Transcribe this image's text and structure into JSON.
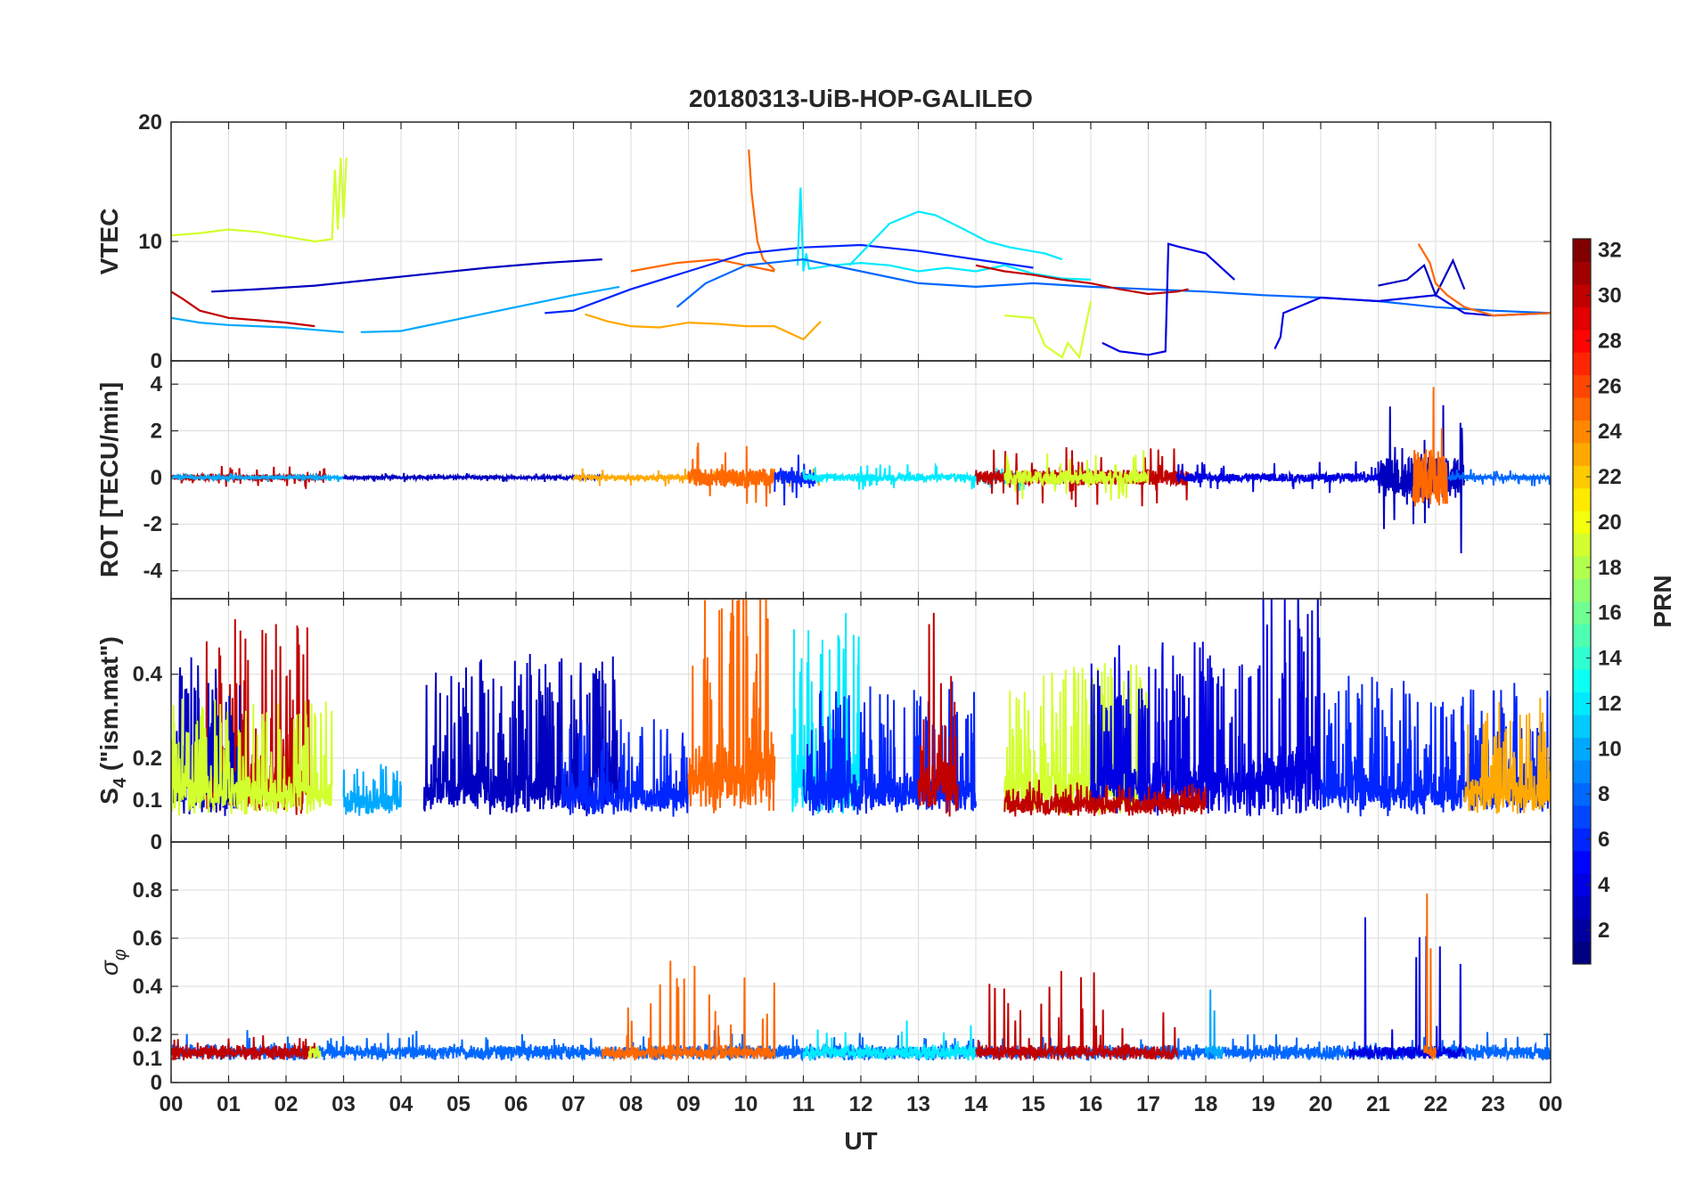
{
  "chart_data": {
    "type": "line",
    "title": "20180313-UiB-HOP-GALILEO",
    "xlabel": "UT",
    "x_ticks": [
      "00",
      "01",
      "02",
      "03",
      "04",
      "05",
      "06",
      "07",
      "08",
      "09",
      "10",
      "11",
      "12",
      "13",
      "14",
      "15",
      "16",
      "17",
      "18",
      "19",
      "20",
      "21",
      "22",
      "23",
      "00"
    ],
    "xlim": [
      0,
      24
    ],
    "colorbar": {
      "label": "PRN",
      "range": [
        1,
        32
      ],
      "ticks": [
        "2",
        "4",
        "6",
        "8",
        "10",
        "12",
        "14",
        "16",
        "18",
        "20",
        "22",
        "24",
        "26",
        "28",
        "30",
        "32"
      ],
      "colormap": "jet"
    },
    "panels": [
      {
        "id": "vtec",
        "ylabel": "VTEC",
        "ylim": [
          0,
          20
        ],
        "y_ticks": [
          "0",
          "10",
          "20"
        ],
        "series": [
          {
            "prn": 19,
            "x": [
              0,
              0.5,
              1,
              1.5,
              2,
              2.5,
              2.8,
              2.85,
              2.9,
              2.95,
              3.0,
              3.05
            ],
            "y": [
              10.5,
              10.7,
              11,
              10.8,
              10.4,
              10.0,
              10.2,
              16,
              11,
              17,
              12,
              17
            ]
          },
          {
            "prn": 30,
            "x": [
              0,
              0.2,
              0.5,
              1,
              1.5,
              2,
              2.5
            ],
            "y": [
              5.8,
              5.2,
              4.2,
              3.6,
              3.4,
              3.2,
              2.9
            ]
          },
          {
            "prn": 10,
            "x": [
              0,
              0.5,
              1,
              1.5,
              2,
              2.5,
              3
            ],
            "y": [
              3.6,
              3.2,
              3.0,
              2.9,
              2.8,
              2.6,
              2.4
            ]
          },
          {
            "prn": 3,
            "x": [
              0.7,
              1.5,
              2.5,
              3.5,
              4.5,
              5.5,
              6.5,
              7.5
            ],
            "y": [
              5.8,
              6.0,
              6.3,
              6.8,
              7.3,
              7.8,
              8.2,
              8.5
            ]
          },
          {
            "prn": 10,
            "x": [
              3.3,
              4,
              5,
              6,
              7,
              7.8
            ],
            "y": [
              2.4,
              2.5,
              3.5,
              4.5,
              5.5,
              6.2
            ]
          },
          {
            "prn": 23,
            "x": [
              7.2,
              7.6,
              8,
              8.5,
              9,
              9.5,
              10,
              10.5,
              11,
              11.3
            ],
            "y": [
              3.9,
              3.3,
              2.9,
              2.8,
              3.2,
              3.1,
              2.9,
              2.9,
              1.8,
              3.3
            ]
          },
          {
            "prn": 25,
            "x": [
              8,
              8.8,
              9.5,
              10,
              10.5
            ],
            "y": [
              7.5,
              8.2,
              8.5,
              8.0,
              7.5
            ]
          },
          {
            "prn": 25,
            "x": [
              10.05,
              10.1,
              10.2,
              10.3,
              10.5
            ],
            "y": [
              17.7,
              14,
              10,
              8.5,
              7.6
            ]
          },
          {
            "prn": 6,
            "x": [
              6.5,
              7,
              8,
              9,
              10,
              11,
              12,
              13,
              14,
              15
            ],
            "y": [
              4.0,
              4.2,
              6,
              7.5,
              9.0,
              9.5,
              9.7,
              9.2,
              8.5,
              7.8
            ]
          },
          {
            "prn": 12,
            "x": [
              10.9,
              10.95,
              11,
              11.05,
              11.1,
              11.5,
              12,
              12.5,
              13,
              13.5,
              14,
              14.5,
              15,
              15.5,
              16
            ],
            "y": [
              8,
              14.5,
              7.5,
              9,
              7.7,
              8,
              8.2,
              8,
              7.5,
              7.8,
              7.5,
              8,
              7.3,
              6.9,
              6.8
            ]
          },
          {
            "prn": 12,
            "x": [
              11.8,
              12.2,
              12.5,
              13,
              13.3,
              13.8,
              14.2,
              14.6,
              15.2,
              15.5
            ],
            "y": [
              8,
              10,
              11.5,
              12.5,
              12.2,
              11,
              10,
              9.5,
              9.0,
              8.5
            ]
          },
          {
            "prn": 8,
            "x": [
              8.8,
              9.3,
              10,
              11,
              12,
              13,
              14,
              15,
              16,
              17,
              18,
              19,
              20,
              21,
              22,
              23,
              24
            ],
            "y": [
              4.5,
              6.5,
              8.0,
              8.5,
              7.5,
              6.5,
              6.2,
              6.5,
              6.2,
              6.0,
              5.8,
              5.5,
              5.3,
              5.0,
              4.5,
              4.2,
              4.0
            ]
          },
          {
            "prn": 30,
            "x": [
              14,
              14.5,
              15,
              15.5,
              16,
              16.5,
              17,
              17.5,
              17.7
            ],
            "y": [
              8,
              7.5,
              7.2,
              6.8,
              6.5,
              6.0,
              5.6,
              5.8,
              6.0
            ]
          },
          {
            "prn": 19,
            "x": [
              14.5,
              15,
              15.2,
              15.5,
              15.6,
              15.8,
              16
            ],
            "y": [
              3.8,
              3.6,
              1.3,
              0.3,
              1.5,
              0.3,
              5.0
            ]
          },
          {
            "prn": 4,
            "x": [
              16.2,
              16.5,
              17,
              17.3,
              17.35,
              17.5,
              18,
              18.5
            ],
            "y": [
              1.5,
              0.8,
              0.5,
              0.8,
              9.8,
              9.6,
              9.0,
              6.8
            ]
          },
          {
            "prn": 4,
            "x": [
              19.2,
              19.3,
              19.35,
              20,
              21,
              22,
              22.5,
              23,
              24
            ],
            "y": [
              1.0,
              2.0,
              4.0,
              5.3,
              5.0,
              5.5,
              4.0,
              3.8,
              4.0
            ]
          },
          {
            "prn": 3,
            "x": [
              21,
              21.5,
              21.8,
              22,
              22.3,
              22.5
            ],
            "y": [
              6.3,
              6.8,
              8.0,
              5.5,
              8.4,
              6.0
            ]
          },
          {
            "prn": 25,
            "x": [
              21.7,
              21.9,
              22,
              22.2,
              22.5,
              23,
              24
            ],
            "y": [
              9.8,
              8.2,
              6.5,
              5.5,
              4.5,
              3.8,
              4.0
            ]
          }
        ]
      },
      {
        "id": "rot",
        "ylabel": "ROT [TECU/min]",
        "ylim": [
          -5.2,
          5
        ],
        "y_ticks": [
          "-4",
          "-2",
          "0",
          "2",
          "4"
        ],
        "noise_segments": [
          {
            "prn": 30,
            "start": 0,
            "end": 2.7,
            "amp": 0.5
          },
          {
            "prn": 10,
            "start": 0,
            "end": 3.0,
            "amp": 0.2
          },
          {
            "prn": 3,
            "start": 3.0,
            "end": 7.5,
            "amp": 0.2
          },
          {
            "prn": 23,
            "start": 7.0,
            "end": 11.3,
            "amp": 0.4
          },
          {
            "prn": 25,
            "start": 9.0,
            "end": 10.5,
            "amp": 1.5
          },
          {
            "prn": 6,
            "start": 10.5,
            "end": 11.2,
            "amp": 1.2
          },
          {
            "prn": 12,
            "start": 11.0,
            "end": 16.0,
            "amp": 0.6
          },
          {
            "prn": 30,
            "start": 14.0,
            "end": 17.7,
            "amp": 1.3
          },
          {
            "prn": 19,
            "start": 14.5,
            "end": 17.0,
            "amp": 1.2
          },
          {
            "prn": 4,
            "start": 17.5,
            "end": 21.0,
            "amp": 0.7
          },
          {
            "prn": 3,
            "start": 21.0,
            "end": 22.5,
            "amp": 3.5
          },
          {
            "prn": 25,
            "start": 21.6,
            "end": 22.2,
            "amp": 5.0
          },
          {
            "prn": 8,
            "start": 22.2,
            "end": 24.0,
            "amp": 0.4
          }
        ]
      },
      {
        "id": "s4",
        "ylabel": "S",
        "ylabel_sub": "4",
        "ylabel_suffix": " (\"ism.mat\")",
        "ylim": [
          0,
          0.58
        ],
        "y_ticks": [
          "0",
          "0.1",
          "0.2",
          "0.4"
        ],
        "noise_segments": [
          {
            "prn": 30,
            "start": 0.5,
            "end": 2.4,
            "amp": 0.45
          },
          {
            "prn": 3,
            "start": 0,
            "end": 1.2,
            "amp": 0.35
          },
          {
            "prn": 19,
            "start": 0,
            "end": 2.8,
            "amp": 0.25
          },
          {
            "prn": 10,
            "start": 3.0,
            "end": 4.0,
            "amp": 0.1
          },
          {
            "prn": 3,
            "start": 4.4,
            "end": 7.8,
            "amp": 0.35
          },
          {
            "prn": 6,
            "start": 6.8,
            "end": 9.0,
            "amp": 0.2
          },
          {
            "prn": 25,
            "start": 9.0,
            "end": 10.5,
            "amp": 0.55
          },
          {
            "prn": 12,
            "start": 10.8,
            "end": 12.0,
            "amp": 0.45
          },
          {
            "prn": 6,
            "start": 11.0,
            "end": 14.0,
            "amp": 0.3
          },
          {
            "prn": 30,
            "start": 13.0,
            "end": 13.7,
            "amp": 0.5
          },
          {
            "prn": 19,
            "start": 14.5,
            "end": 17.0,
            "amp": 0.35
          },
          {
            "prn": 4,
            "start": 16.0,
            "end": 19.0,
            "amp": 0.4
          },
          {
            "prn": 4,
            "start": 19.0,
            "end": 20.0,
            "amp": 0.55
          },
          {
            "prn": 6,
            "start": 20.0,
            "end": 24.0,
            "amp": 0.3
          },
          {
            "prn": 23,
            "start": 22.5,
            "end": 24.0,
            "amp": 0.25
          },
          {
            "prn": 30,
            "start": 14.5,
            "end": 18.0,
            "amp": 0.05
          }
        ]
      },
      {
        "id": "sigma",
        "ylabel": "σ",
        "ylabel_sub": "φ",
        "ylim": [
          0,
          1
        ],
        "y_ticks": [
          "0",
          "0.1",
          "0.2",
          "0.4",
          "0.6",
          "0.8"
        ],
        "noise_segments": [
          {
            "prn": 8,
            "start": 0,
            "end": 24.0,
            "amp": 0.1
          },
          {
            "prn": 30,
            "start": 0,
            "end": 2.5,
            "amp": 0.1
          },
          {
            "prn": 19,
            "start": 2.4,
            "end": 2.6,
            "amp": 0.45
          },
          {
            "prn": 25,
            "start": 7.5,
            "end": 10.5,
            "amp": 0.4
          },
          {
            "prn": 12,
            "start": 11.0,
            "end": 14.0,
            "amp": 0.15
          },
          {
            "prn": 30,
            "start": 14.0,
            "end": 17.5,
            "amp": 0.35
          },
          {
            "prn": 10,
            "start": 18.0,
            "end": 18.3,
            "amp": 0.45
          },
          {
            "prn": 4,
            "start": 20.5,
            "end": 22.5,
            "amp": 0.6
          },
          {
            "prn": 25,
            "start": 21.8,
            "end": 22.0,
            "amp": 1.0
          }
        ]
      }
    ]
  }
}
